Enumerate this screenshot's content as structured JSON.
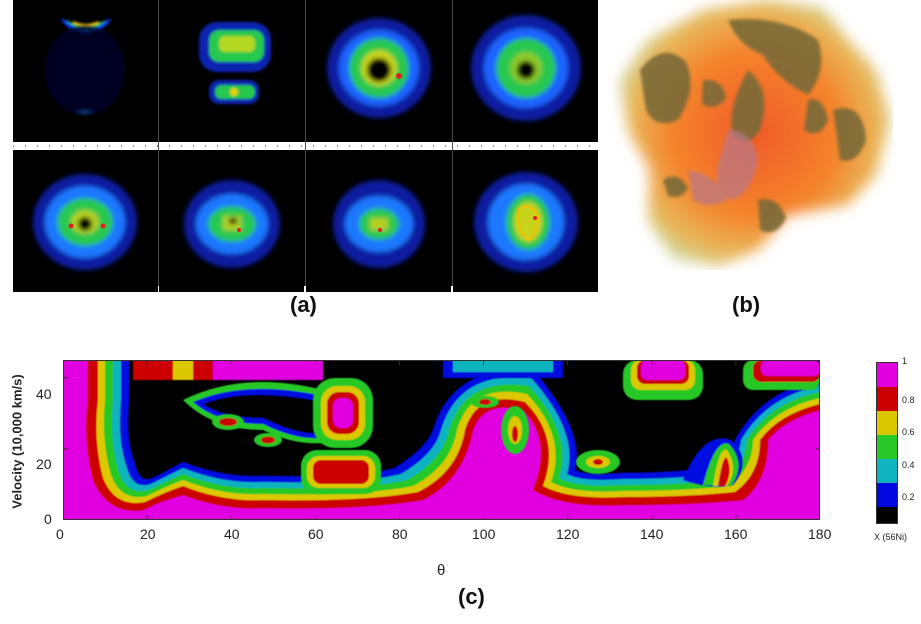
{
  "labels": {
    "a": "(a)",
    "b": "(b)",
    "c": "(c)"
  },
  "chart_data": {
    "type": "heatmap",
    "xlabel": "θ",
    "ylabel": "Velocity (10,000 km/s)",
    "xlim": [
      0,
      180
    ],
    "ylim": [
      0,
      45
    ],
    "xticks": [
      "0",
      "20",
      "40",
      "60",
      "80",
      "100",
      "120",
      "140",
      "160",
      "180"
    ],
    "yticks": [
      "0",
      "20",
      "40"
    ],
    "colorbar": {
      "ticks": [
        "1",
        "0.8",
        "0.6",
        "0.4",
        "0.2"
      ],
      "label": "X (56Ni)",
      "stops": [
        "#e000e0",
        "#cc0000",
        "#dcc800",
        "#28c828",
        "#10b4c0",
        "#0008e0",
        "#000000"
      ]
    }
  }
}
